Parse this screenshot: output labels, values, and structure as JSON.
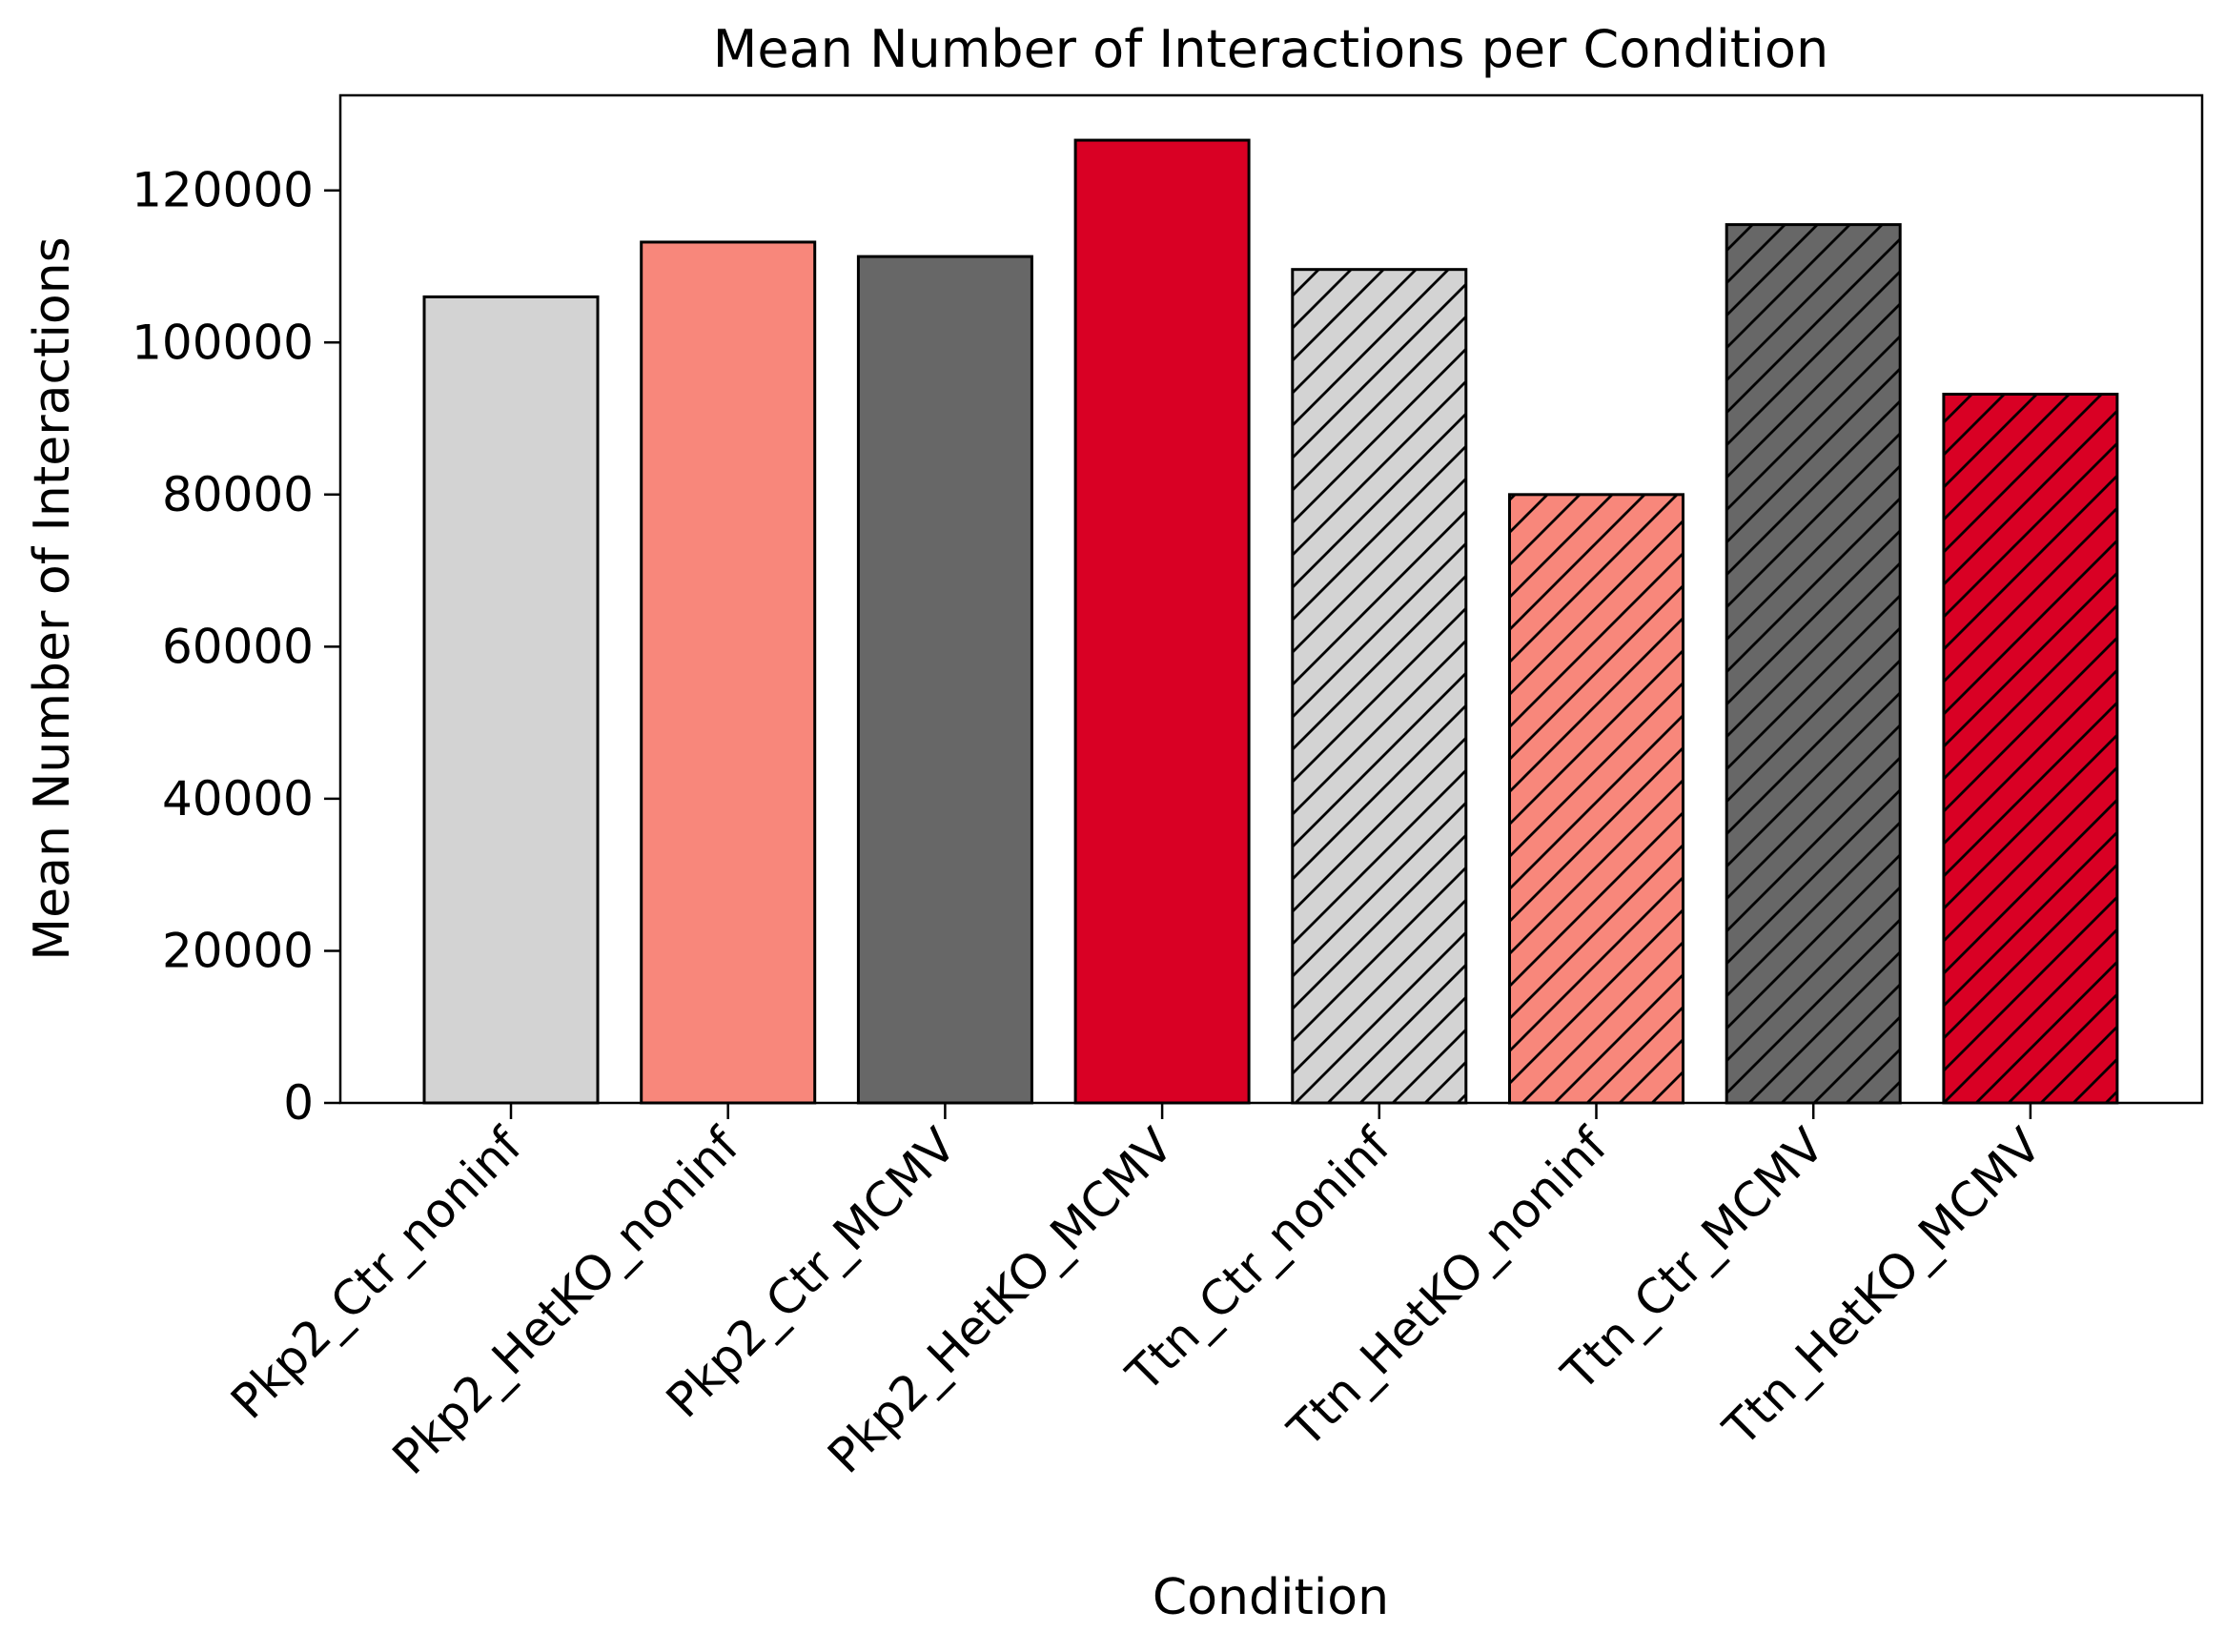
{
  "chart_data": {
    "type": "bar",
    "title": "Mean Number of Interactions per Condition",
    "xlabel": "Condition",
    "ylabel": "Mean Number of Interactions",
    "categories": [
      "Pkp2_Ctr_noninf",
      "Pkp2_HetKO_noninf",
      "Pkp2_Ctr_MCMV",
      "Pkp2_HetKO_MCMV",
      "Ttn_Ctr_noninf",
      "Ttn_HetKO_noninf",
      "Ttn_Ctr_MCMV",
      "Ttn_HetKO_MCMV"
    ],
    "values": [
      106000,
      113200,
      111300,
      126600,
      109600,
      80000,
      115500,
      93200
    ],
    "colors": [
      "#d3d3d3",
      "#f8877b",
      "#676767",
      "#d90024",
      "#d3d3d3",
      "#f8877b",
      "#676767",
      "#d90024"
    ],
    "hatched": [
      false,
      false,
      false,
      false,
      true,
      true,
      true,
      true
    ],
    "ylim": [
      0,
      132500
    ],
    "yticks": [
      "0",
      "20000",
      "40000",
      "60000",
      "80000",
      "100000",
      "120000"
    ],
    "grid": false,
    "legend": "none"
  }
}
